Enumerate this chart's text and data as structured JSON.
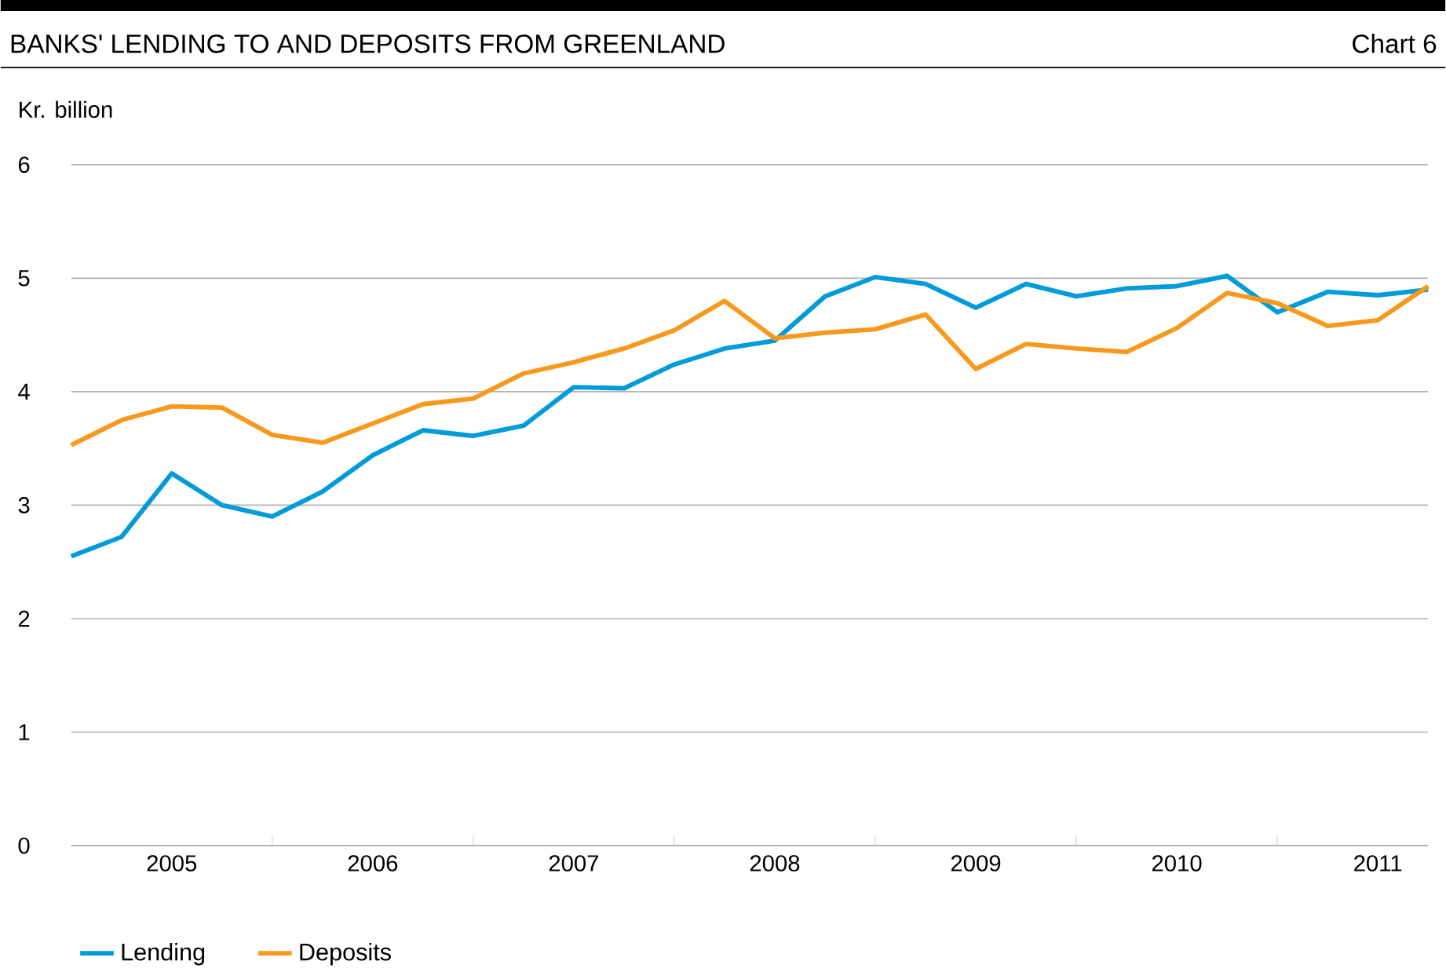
{
  "chart_data": {
    "type": "line",
    "title": "BANKS' LENDING TO AND DEPOSITS FROM GREENLAND",
    "ylabel": "Kr. billion",
    "annotations": [
      "Chart 6"
    ],
    "x": [
      2004.5,
      2004.75,
      2005,
      2005.25,
      2005.5,
      2005.75,
      2006,
      2006.25,
      2006.5,
      2006.75,
      2007,
      2007.25,
      2007.5,
      2007.75,
      2008,
      2008.25,
      2008.5,
      2008.75,
      2009,
      2009.25,
      2009.5,
      2009.75,
      2010,
      2010.25,
      2010.5,
      2010.75,
      2011,
      2011.25
    ],
    "xlim": [
      2004.5,
      2011.25
    ],
    "xticks": [
      {
        "value": 2005.5,
        "label": null
      },
      {
        "value": 2006.5,
        "label": null
      },
      {
        "value": 2007.5,
        "label": null
      },
      {
        "value": 2008.5,
        "label": null
      },
      {
        "value": 2009.5,
        "label": null
      },
      {
        "value": 2010.5,
        "label": null
      },
      2005,
      2006,
      2007,
      2008,
      2009,
      2010,
      2011
    ],
    "ylim": [
      0,
      6
    ],
    "yticks": [
      0,
      1,
      2,
      3,
      4,
      5,
      6
    ],
    "grid": "y",
    "legend": "bottom left",
    "line_style": "solid",
    "series": [
      {
        "name": "Lending",
        "color": "#009bd9",
        "values": [
          2.55,
          2.72,
          3.28,
          3.0,
          2.9,
          3.12,
          3.44,
          3.66,
          3.61,
          3.7,
          4.04,
          4.03,
          4.24,
          4.38,
          4.45,
          4.84,
          5.01,
          4.95,
          4.74,
          4.95,
          4.84,
          4.91,
          4.93,
          5.02,
          4.7,
          4.88,
          4.85,
          4.9
        ]
      },
      {
        "name": "Deposits",
        "color": "#f7991c",
        "values": [
          3.53,
          3.75,
          3.87,
          3.86,
          3.62,
          3.55,
          3.72,
          3.89,
          3.94,
          4.16,
          4.26,
          4.38,
          4.54,
          4.8,
          4.47,
          4.52,
          4.55,
          4.68,
          4.2,
          4.42,
          4.38,
          4.35,
          4.56,
          4.87,
          4.78,
          4.58,
          4.63,
          4.93
        ]
      }
    ]
  }
}
